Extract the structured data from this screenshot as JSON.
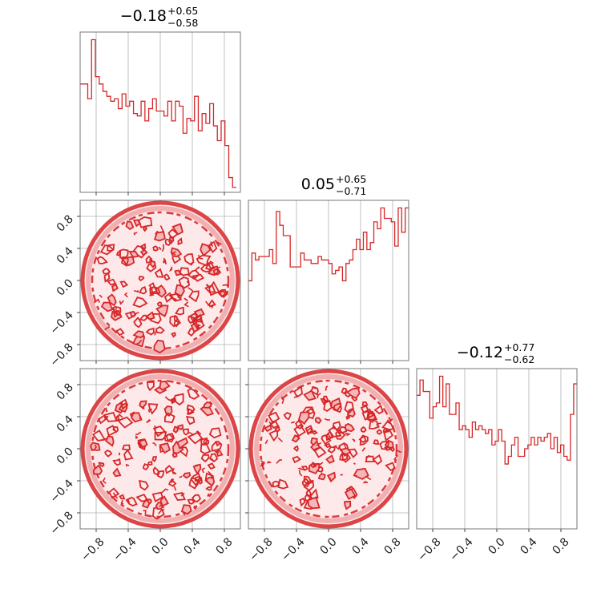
{
  "chart_data": {
    "type": "corner",
    "color": "#d62728",
    "axis_range": [
      -1,
      1
    ],
    "grid": true,
    "tick_labels": [
      "−0.8",
      "−0.4",
      "0.0",
      "0.4",
      "0.8"
    ],
    "tick_values": [
      -0.8,
      -0.4,
      0.0,
      0.4,
      0.8
    ],
    "parameters": [
      {
        "median": "−0.18",
        "plus": "+0.65",
        "minus": "−0.58"
      },
      {
        "median": "0.05",
        "plus": "+0.65",
        "minus": "−0.71"
      },
      {
        "median": "−0.12",
        "plus": "+0.77",
        "minus": "−0.62"
      }
    ],
    "histograms": [
      {
        "bin_edges": [
          -1.0,
          0.95
        ],
        "counts": [
          44,
          44,
          38,
          62,
          47,
          44,
          41,
          39,
          37,
          38,
          34,
          40,
          35,
          37,
          32,
          31,
          37,
          29,
          34,
          38,
          33,
          33,
          31,
          37,
          29,
          37,
          35,
          24,
          30,
          29,
          39,
          25,
          32,
          28,
          36,
          27,
          21,
          29,
          19,
          6,
          2
        ]
      },
      {
        "counts": [
          23,
          31,
          29,
          30,
          30,
          30,
          32,
          28,
          43,
          39,
          36,
          36,
          27,
          27,
          27,
          31,
          29,
          29,
          28,
          28,
          30,
          29,
          29,
          28,
          25,
          26,
          27,
          23,
          28,
          29,
          32,
          35,
          32,
          37,
          32,
          34,
          40,
          38,
          44,
          41,
          41,
          40,
          33,
          44,
          37,
          44
        ]
      },
      {
        "counts": [
          35,
          39,
          36,
          36,
          29,
          32,
          33,
          40,
          32,
          38,
          30,
          30,
          33,
          26,
          27,
          26,
          24,
          28,
          26,
          27,
          26,
          25,
          26,
          22,
          23,
          26,
          23,
          17,
          19,
          22,
          24,
          19,
          19,
          21,
          22,
          24,
          22,
          24,
          23,
          24,
          25,
          21,
          24,
          20,
          22,
          19,
          18,
          30,
          38
        ]
      }
    ],
    "contour_panels": [
      {
        "x_param": 0,
        "y_param": 1,
        "shape": "uniform disk of radius 1"
      },
      {
        "x_param": 0,
        "y_param": 2,
        "shape": "uniform disk of radius 1"
      },
      {
        "x_param": 1,
        "y_param": 2,
        "shape": "uniform disk of radius 1"
      }
    ]
  }
}
